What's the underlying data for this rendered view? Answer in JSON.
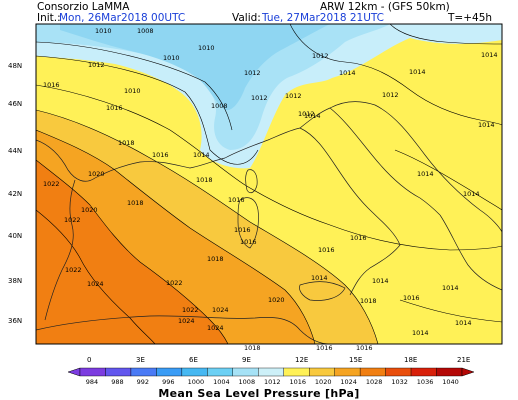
{
  "header": {
    "org": "Consorzio LaMMA",
    "model": "ARW 12km - (GFS 50km)",
    "init_label": "Init.:",
    "init_value": "Mon, 26Mar2018 00UTC",
    "valid_label": "Valid:",
    "valid_value": "Tue, 27Mar2018 21UTC",
    "forecast_step": "T=+45h"
  },
  "axes": {
    "lat_labels": [
      "48N",
      "46N",
      "44N",
      "42N",
      "40N",
      "38N",
      "36N"
    ],
    "lon_labels": [
      "0",
      "3E",
      "6E",
      "9E",
      "12E",
      "15E",
      "18E",
      "21E"
    ]
  },
  "map": {
    "variable": "Mean Sea Level Pressure",
    "contour_interval_hpa": 2,
    "contour_labels": [
      "1010",
      "1008",
      "1010",
      "1012",
      "1012",
      "1010",
      "1012",
      "1014",
      "1014",
      "1014",
      "1010",
      "1008",
      "1012",
      "1016",
      "1014",
      "1016",
      "1018",
      "1016",
      "1014",
      "1012",
      "1012",
      "1012",
      "1014",
      "1014",
      "1014",
      "1016",
      "1018",
      "1020",
      "1022",
      "1020",
      "1018",
      "1016",
      "1016",
      "1016",
      "1014",
      "1014",
      "1014",
      "1022",
      "1022",
      "1018",
      "1018",
      "1016",
      "1016",
      "1014",
      "1022",
      "1024",
      "1024",
      "1024",
      "1024",
      "1022",
      "1020",
      "1018",
      "1016",
      "1016",
      "1014"
    ],
    "shading_colors": {
      "1006-1008": "#8fd6f2",
      "1008-1010": "#a9e2f6",
      "1010-1012": "#c8eefa",
      "1012-1016": "#fff157",
      "1016-1020": "#f8c93e",
      "1020-1024": "#f5a422",
      "1024-1028": "#f17f12"
    }
  },
  "colorbar": {
    "ticks": [
      "984",
      "988",
      "992",
      "996",
      "1000",
      "1004",
      "1008",
      "1012",
      "1016",
      "1020",
      "1024",
      "1028",
      "1032",
      "1036",
      "1040"
    ],
    "colors": [
      "#7c3ce0",
      "#6256ee",
      "#4a7af5",
      "#3a9cf5",
      "#46b8f2",
      "#6cd0f4",
      "#a6e2f6",
      "#cdf0f8",
      "#fff157",
      "#f8c93e",
      "#f5a422",
      "#f17f12",
      "#e94e0c",
      "#d8200a",
      "#b40806"
    ],
    "title": "Mean Sea Level Pressure [hPa]"
  }
}
